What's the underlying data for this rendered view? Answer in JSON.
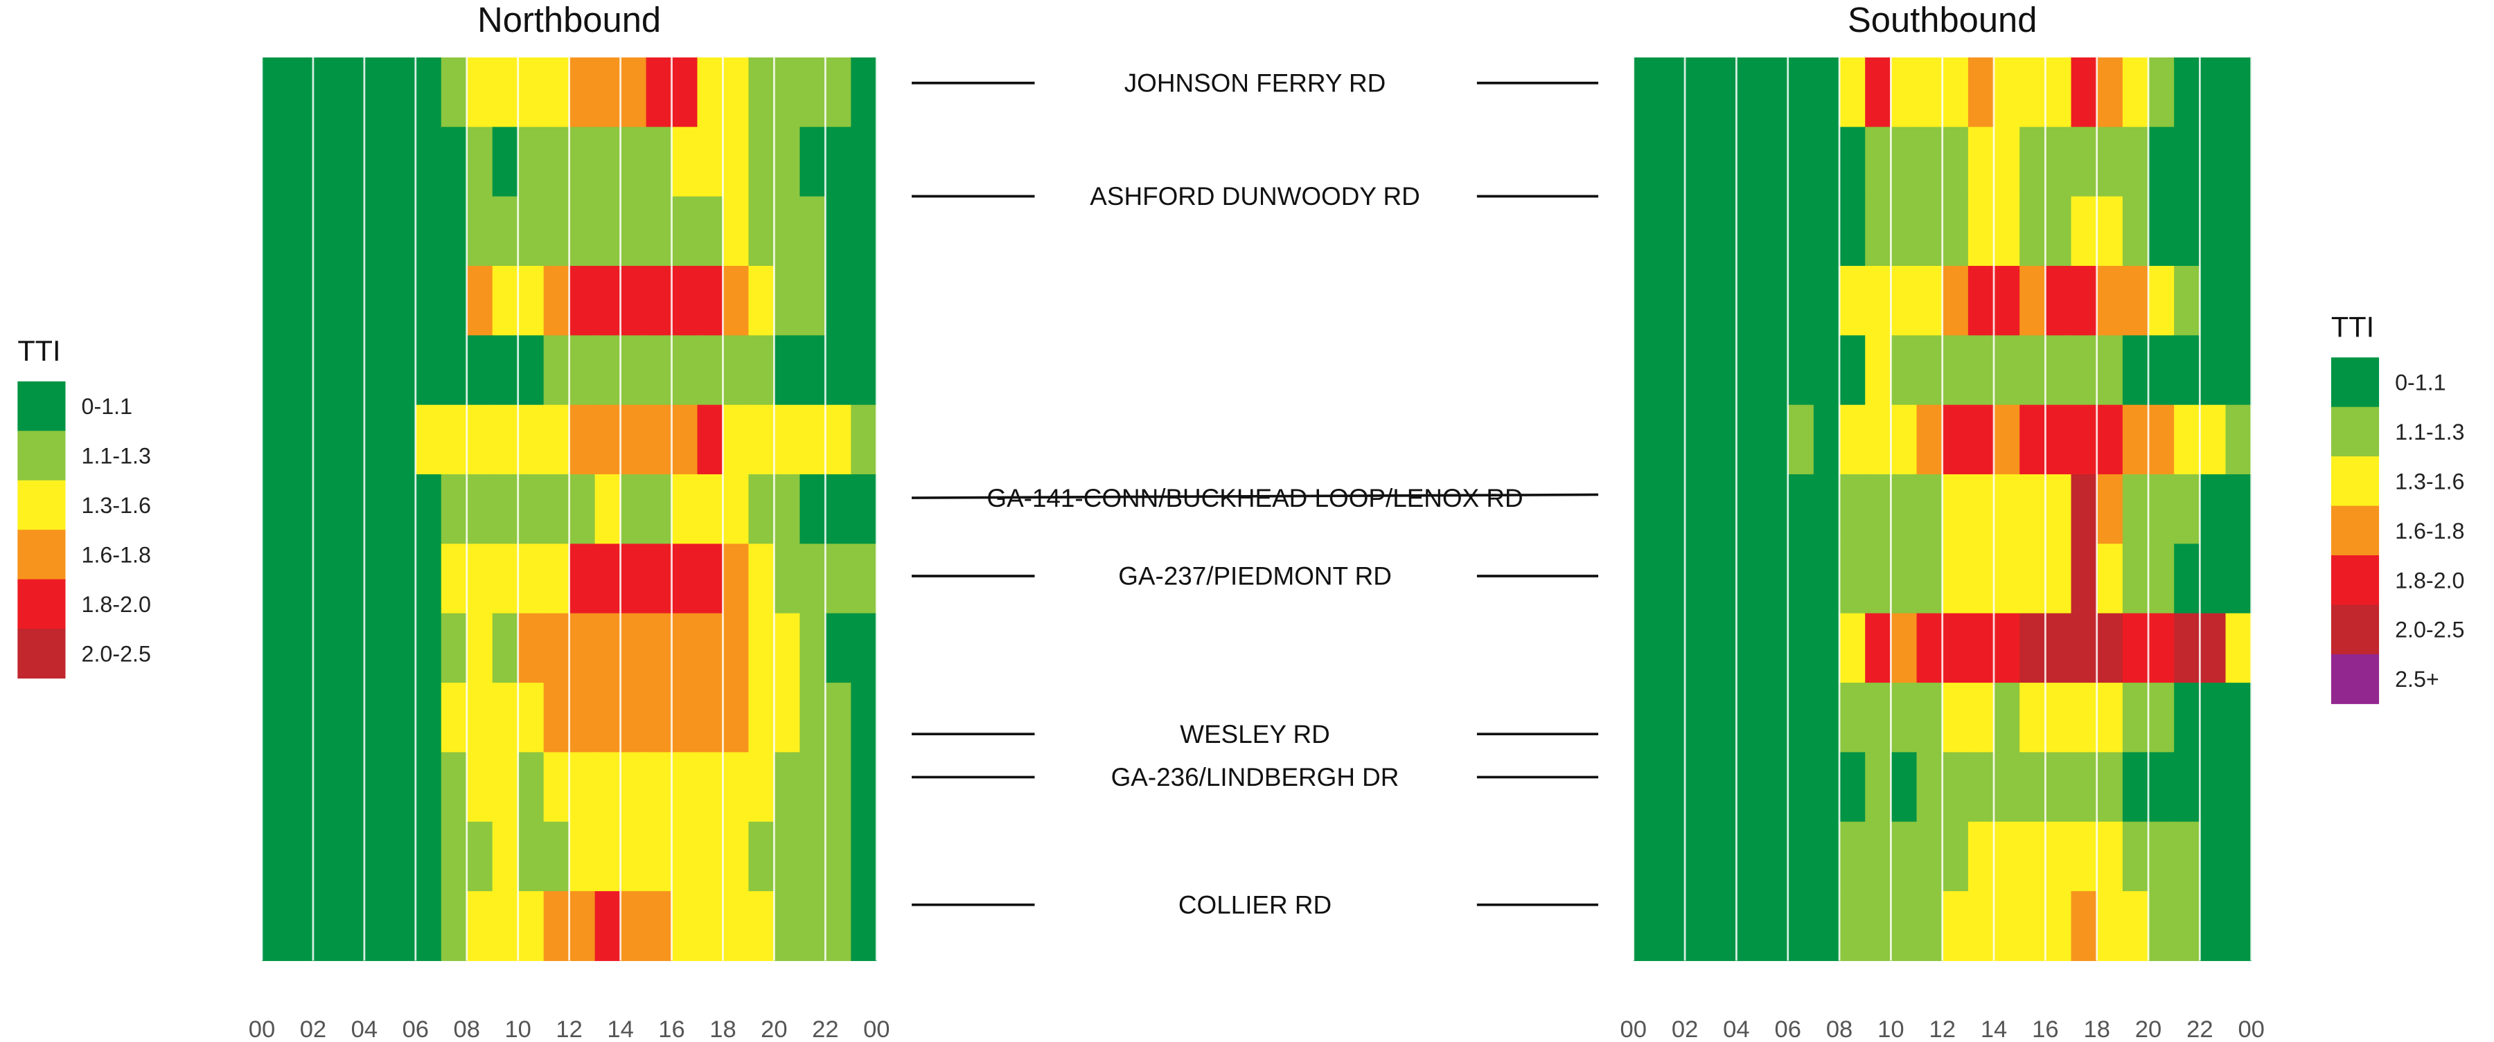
{
  "chart_data": {
    "type": "heatmap",
    "xlabel": "",
    "ylabel": "",
    "x_ticks": [
      "00",
      "02",
      "04",
      "06",
      "08",
      "10",
      "12",
      "14",
      "16",
      "18",
      "20",
      "22",
      "00"
    ],
    "x_range": [
      0,
      24
    ],
    "legends": [
      {
        "title": "TTI",
        "placement": "left",
        "entries": [
          {
            "label": "0-1.1",
            "color": "#009444"
          },
          {
            "label": "1.1-1.3",
            "color": "#8dc63f"
          },
          {
            "label": "1.3-1.6",
            "color": "#fff11e"
          },
          {
            "label": "1.6-1.8",
            "color": "#f7941d"
          },
          {
            "label": "1.8-2.0",
            "color": "#ed1c24"
          },
          {
            "label": "2.0-2.5",
            "color": "#c1272d"
          }
        ]
      },
      {
        "title": "TTI",
        "placement": "right",
        "entries": [
          {
            "label": "0-1.1",
            "color": "#009444"
          },
          {
            "label": "1.1-1.3",
            "color": "#8dc63f"
          },
          {
            "label": "1.3-1.6",
            "color": "#fff11e"
          },
          {
            "label": "1.6-1.8",
            "color": "#f7941d"
          },
          {
            "label": "1.8-2.0",
            "color": "#ed1c24"
          },
          {
            "label": "2.0-2.5",
            "color": "#c1272d"
          },
          {
            "label": "2.5+",
            "color": "#92278f"
          }
        ]
      }
    ],
    "roads": [
      "JOHNSON FERRY RD",
      "ASHFORD DUNWOODY RD",
      "GA-141-CONN/BUCKHEAD LOOP/LENOX RD",
      "GA-237/PIEDMONT RD",
      "WESLEY RD",
      "GA-236/LINDBERGH DR",
      "COLLIER RD"
    ],
    "panels": [
      {
        "title": "Northbound",
        "note": "TTI class per hour (0=0-1.1, 1=1.1-1.3, 2=1.3-1.6, 3=1.6-1.8, 4=1.8-2.0, 5=2.0-2.5, 6=2.5+), segments listed top to bottom",
        "segments": [
          {
            "hours": [
              0,
              0,
              0,
              0,
              0,
              0,
              0,
              1,
              2,
              2,
              2,
              2,
              3,
              3,
              3,
              4,
              4,
              2,
              2,
              1,
              1,
              1,
              1,
              0
            ]
          },
          {
            "hours": [
              0,
              0,
              0,
              0,
              0,
              0,
              0,
              0,
              1,
              0,
              1,
              1,
              1,
              1,
              1,
              1,
              2,
              2,
              2,
              1,
              1,
              0,
              0,
              0
            ]
          },
          {
            "hours": [
              0,
              0,
              0,
              0,
              0,
              0,
              0,
              0,
              1,
              1,
              1,
              1,
              1,
              1,
              1,
              1,
              1,
              1,
              2,
              1,
              1,
              1,
              0,
              0
            ]
          },
          {
            "hours": [
              0,
              0,
              0,
              0,
              0,
              0,
              0,
              0,
              3,
              2,
              2,
              3,
              4,
              4,
              4,
              4,
              4,
              4,
              3,
              2,
              1,
              1,
              0,
              0
            ]
          },
          {
            "hours": [
              0,
              0,
              0,
              0,
              0,
              0,
              0,
              0,
              0,
              0,
              0,
              1,
              1,
              1,
              1,
              1,
              1,
              1,
              1,
              1,
              0,
              0,
              0,
              0
            ]
          },
          {
            "hours": [
              0,
              0,
              0,
              0,
              0,
              0,
              2,
              2,
              2,
              2,
              2,
              2,
              3,
              3,
              3,
              3,
              3,
              4,
              2,
              2,
              2,
              2,
              2,
              1
            ]
          },
          {
            "hours": [
              0,
              0,
              0,
              0,
              0,
              0,
              0,
              1,
              1,
              1,
              1,
              1,
              1,
              2,
              1,
              1,
              2,
              2,
              2,
              1,
              1,
              0,
              0,
              0
            ]
          },
          {
            "hours": [
              0,
              0,
              0,
              0,
              0,
              0,
              0,
              2,
              2,
              2,
              2,
              2,
              4,
              4,
              4,
              4,
              4,
              4,
              3,
              2,
              1,
              1,
              1,
              1
            ]
          },
          {
            "hours": [
              0,
              0,
              0,
              0,
              0,
              0,
              0,
              1,
              2,
              1,
              3,
              3,
              3,
              3,
              3,
              3,
              3,
              3,
              3,
              2,
              2,
              1,
              0,
              0
            ]
          },
          {
            "hours": [
              0,
              0,
              0,
              0,
              0,
              0,
              0,
              2,
              2,
              2,
              2,
              3,
              3,
              3,
              3,
              3,
              3,
              3,
              3,
              2,
              2,
              1,
              1,
              0
            ]
          },
          {
            "hours": [
              0,
              0,
              0,
              0,
              0,
              0,
              0,
              1,
              2,
              2,
              1,
              2,
              2,
              2,
              2,
              2,
              2,
              2,
              2,
              2,
              1,
              1,
              1,
              0
            ]
          },
          {
            "hours": [
              0,
              0,
              0,
              0,
              0,
              0,
              0,
              1,
              1,
              2,
              1,
              1,
              2,
              2,
              2,
              2,
              2,
              2,
              2,
              1,
              1,
              1,
              1,
              0
            ]
          },
          {
            "hours": [
              0,
              0,
              0,
              0,
              0,
              0,
              0,
              1,
              2,
              2,
              2,
              3,
              3,
              4,
              3,
              3,
              2,
              2,
              2,
              2,
              1,
              1,
              1,
              0
            ]
          }
        ]
      },
      {
        "title": "Southbound",
        "note": "TTI class per hour (0=0-1.1, 1=1.1-1.3, 2=1.3-1.6, 3=1.6-1.8, 4=1.8-2.0, 5=2.0-2.5, 6=2.5+), segments listed top to bottom",
        "segments": [
          {
            "hours": [
              0,
              0,
              0,
              0,
              0,
              0,
              0,
              0,
              2,
              4,
              2,
              2,
              2,
              3,
              2,
              2,
              2,
              4,
              3,
              2,
              1,
              0,
              0,
              0
            ]
          },
          {
            "hours": [
              0,
              0,
              0,
              0,
              0,
              0,
              0,
              0,
              0,
              1,
              1,
              1,
              1,
              2,
              2,
              1,
              1,
              1,
              1,
              1,
              0,
              0,
              0,
              0
            ]
          },
          {
            "hours": [
              0,
              0,
              0,
              0,
              0,
              0,
              0,
              0,
              0,
              1,
              1,
              1,
              1,
              2,
              2,
              1,
              1,
              2,
              2,
              1,
              0,
              0,
              0,
              0
            ]
          },
          {
            "hours": [
              0,
              0,
              0,
              0,
              0,
              0,
              0,
              0,
              2,
              2,
              2,
              2,
              3,
              4,
              4,
              3,
              4,
              4,
              3,
              3,
              2,
              1,
              0,
              0
            ]
          },
          {
            "hours": [
              0,
              0,
              0,
              0,
              0,
              0,
              0,
              0,
              0,
              2,
              1,
              1,
              1,
              1,
              1,
              1,
              1,
              1,
              1,
              0,
              0,
              0,
              0,
              0
            ]
          },
          {
            "hours": [
              0,
              0,
              0,
              0,
              0,
              0,
              1,
              0,
              2,
              2,
              2,
              3,
              4,
              4,
              3,
              4,
              4,
              4,
              4,
              3,
              3,
              2,
              2,
              1
            ]
          },
          {
            "hours": [
              0,
              0,
              0,
              0,
              0,
              0,
              0,
              0,
              1,
              1,
              1,
              1,
              2,
              2,
              2,
              2,
              2,
              5,
              3,
              1,
              1,
              1,
              0,
              0
            ]
          },
          {
            "hours": [
              0,
              0,
              0,
              0,
              0,
              0,
              0,
              0,
              1,
              1,
              1,
              1,
              2,
              2,
              2,
              2,
              2,
              5,
              2,
              1,
              1,
              0,
              0,
              0
            ]
          },
          {
            "hours": [
              0,
              0,
              0,
              0,
              0,
              0,
              0,
              0,
              2,
              4,
              3,
              4,
              4,
              4,
              4,
              5,
              5,
              5,
              5,
              4,
              4,
              5,
              5,
              2
            ]
          },
          {
            "hours": [
              0,
              0,
              0,
              0,
              0,
              0,
              0,
              0,
              1,
              1,
              1,
              1,
              2,
              2,
              1,
              2,
              2,
              2,
              2,
              1,
              1,
              0,
              0,
              0
            ]
          },
          {
            "hours": [
              0,
              0,
              0,
              0,
              0,
              0,
              0,
              0,
              0,
              1,
              0,
              1,
              1,
              1,
              1,
              1,
              1,
              1,
              1,
              0,
              0,
              0,
              0,
              0
            ]
          },
          {
            "hours": [
              0,
              0,
              0,
              0,
              0,
              0,
              0,
              0,
              1,
              1,
              1,
              1,
              1,
              2,
              2,
              2,
              2,
              2,
              2,
              1,
              1,
              1,
              0,
              0
            ]
          },
          {
            "hours": [
              0,
              0,
              0,
              0,
              0,
              0,
              0,
              0,
              1,
              1,
              1,
              1,
              2,
              2,
              2,
              2,
              2,
              3,
              2,
              2,
              1,
              1,
              0,
              0
            ]
          }
        ]
      }
    ]
  }
}
